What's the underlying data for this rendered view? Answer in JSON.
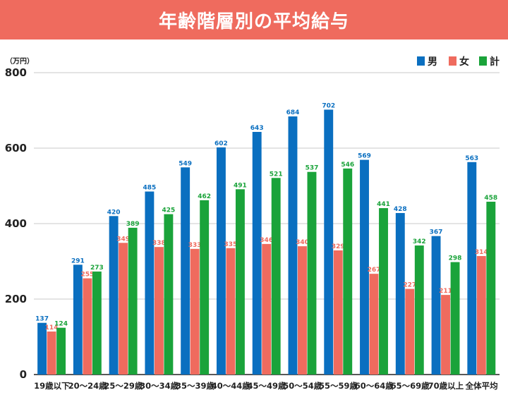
{
  "header": {
    "title": "年齢階層別の平均給与"
  },
  "chart_data": {
    "type": "bar",
    "title": "年齢階層別の平均給与",
    "unit": "（万円）",
    "ylim": [
      0,
      800
    ],
    "yticks": [
      0,
      200,
      400,
      600,
      800
    ],
    "categories": [
      "19歳以下",
      "20～24歳",
      "25～29歳",
      "30～34歳",
      "35～39歳",
      "40～44歳",
      "45～49歳",
      "50～54歳",
      "55～59歳",
      "60～64歳",
      "65～69歳",
      "70歳以上",
      "全体平均"
    ],
    "series": [
      {
        "name": "男",
        "color": "#0a6fc0",
        "values": [
          137,
          291,
          420,
          485,
          549,
          602,
          643,
          684,
          702,
          569,
          428,
          367,
          563
        ]
      },
      {
        "name": "女",
        "color": "#ef6b5e",
        "values": [
          114,
          255,
          349,
          338,
          333,
          335,
          346,
          340,
          329,
          267,
          227,
          211,
          314
        ]
      },
      {
        "name": "計",
        "color": "#1aa33a",
        "values": [
          124,
          273,
          389,
          425,
          462,
          491,
          521,
          537,
          546,
          441,
          342,
          298,
          458
        ]
      }
    ],
    "legend_position": "top-right",
    "grid": true
  }
}
